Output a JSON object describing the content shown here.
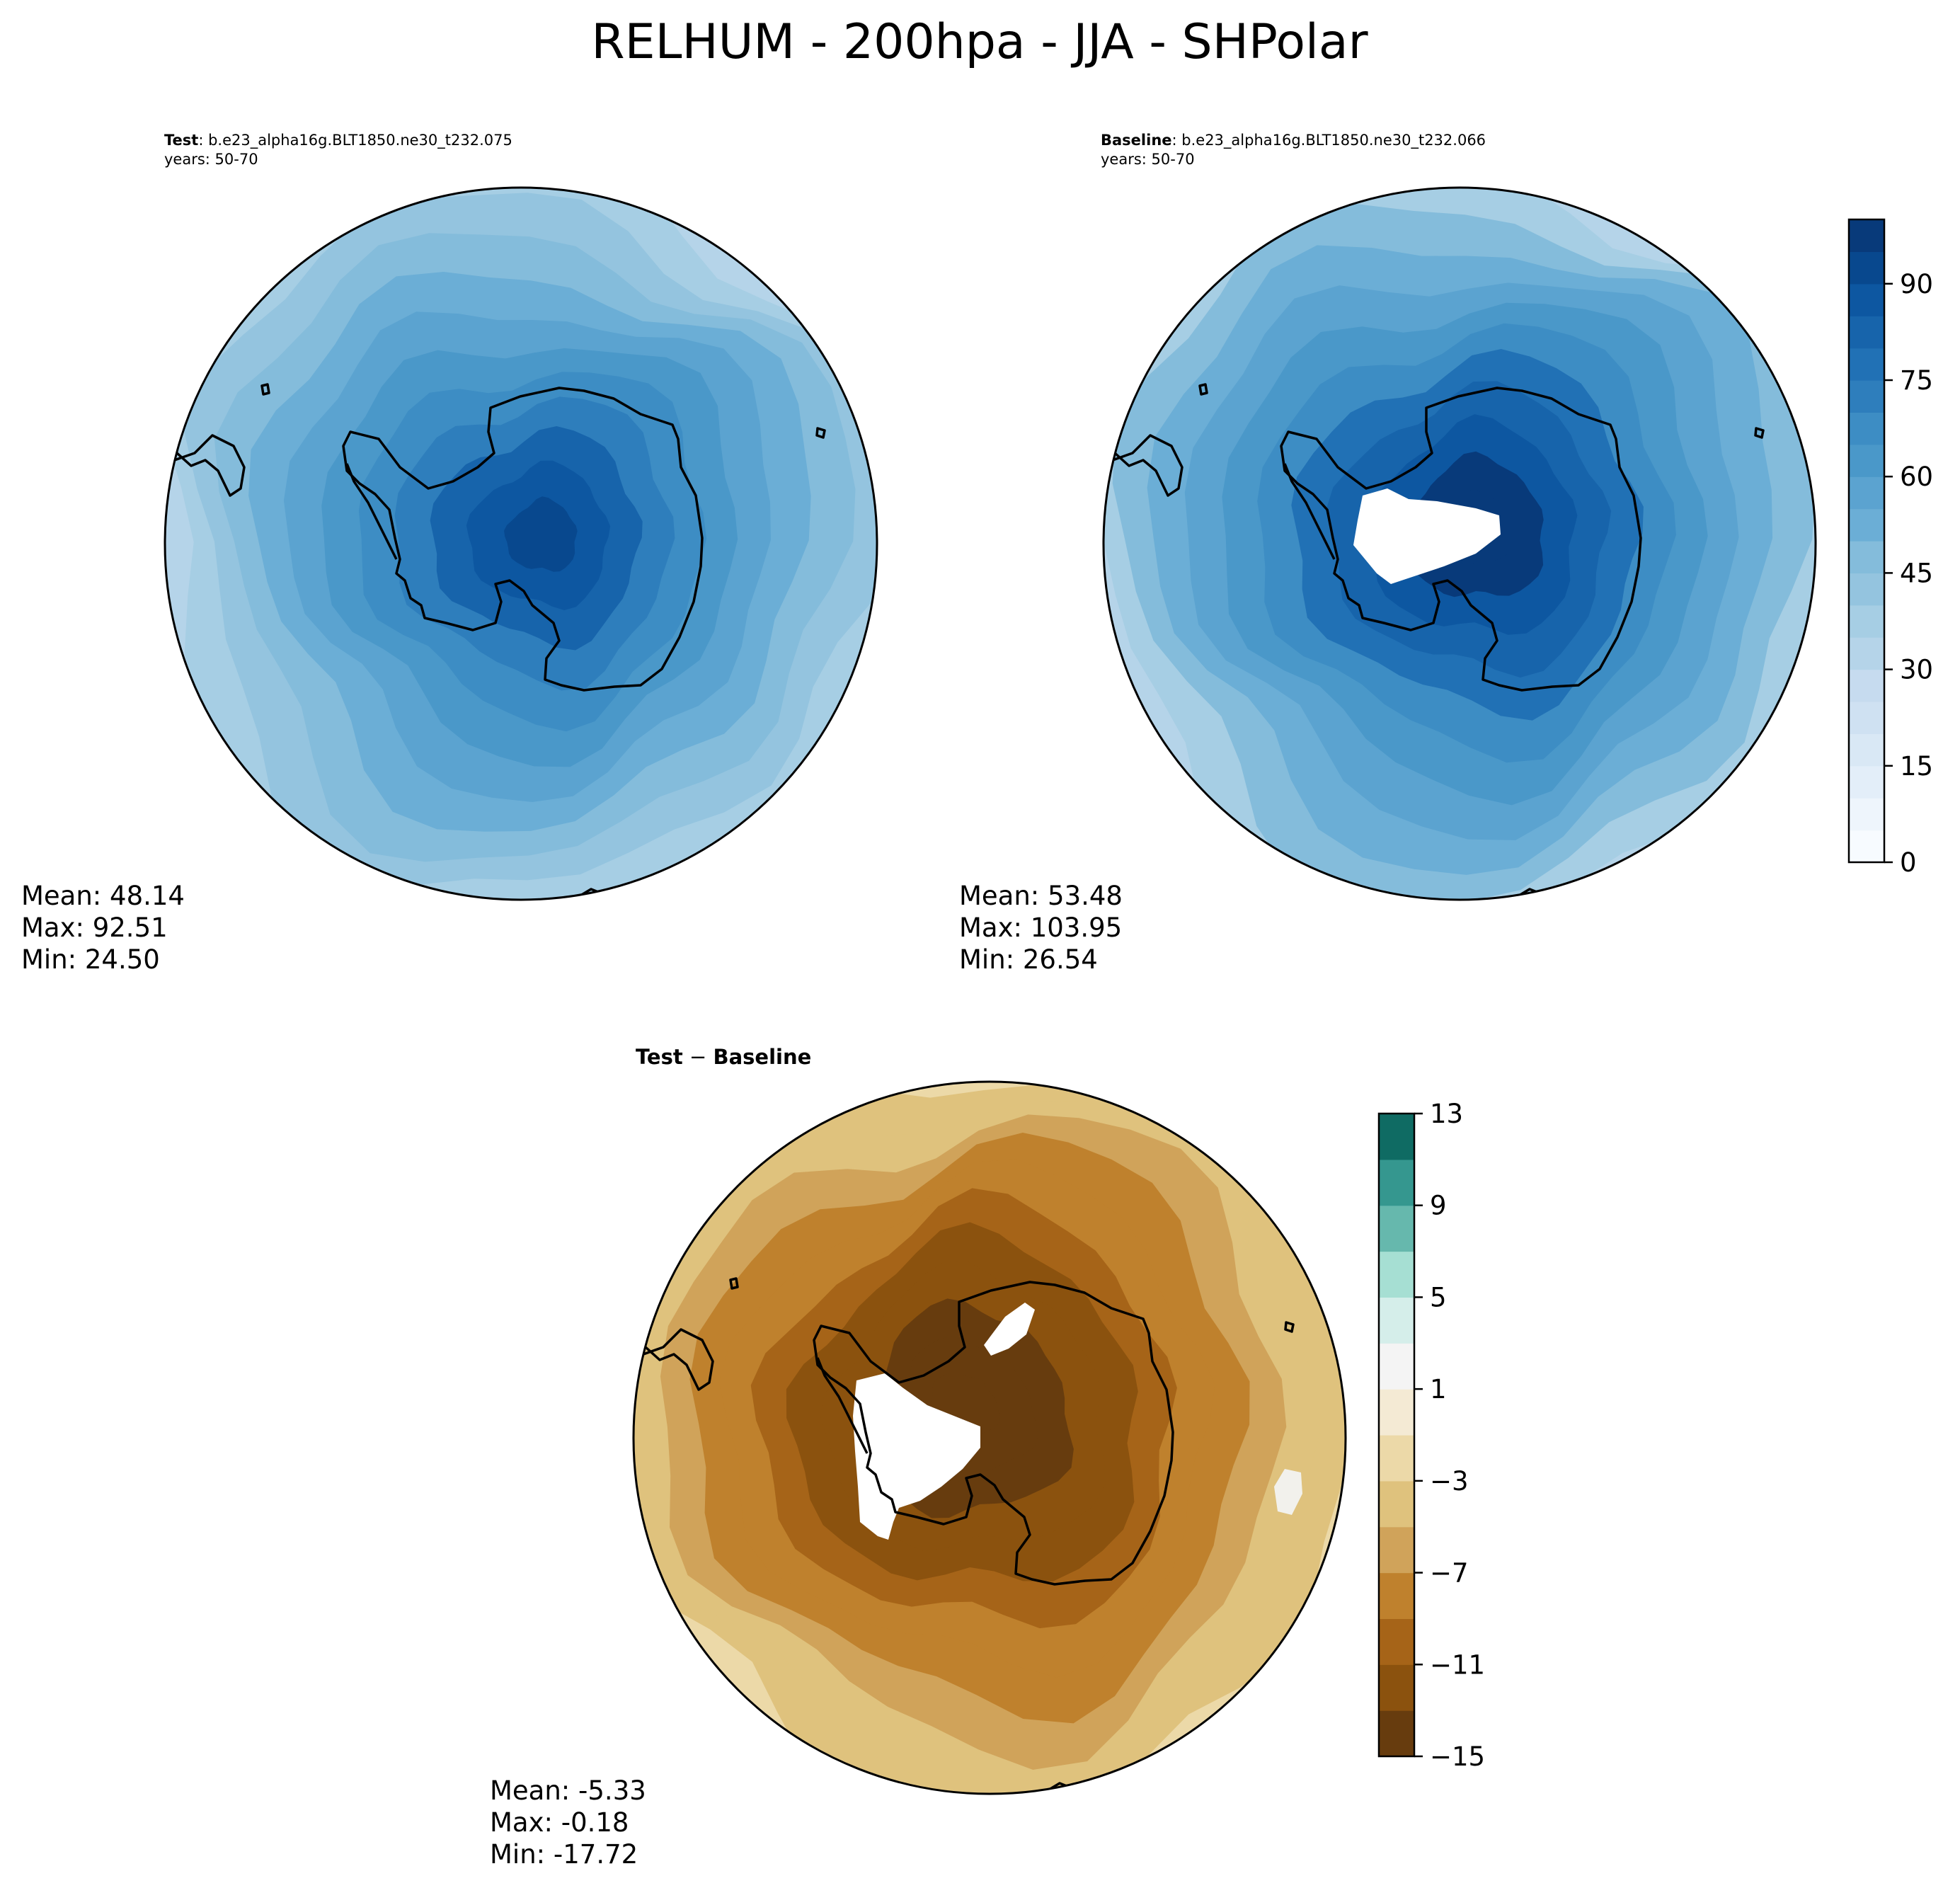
{
  "figure": {
    "title": "RELHUM - 200hpa - JJA - SHPolar"
  },
  "chart_data": [
    {
      "type": "polar-contour",
      "panel": "test",
      "title_bold": "Test",
      "title_rest": ": b.e23_alpha16g.BLT1850.ne30_t232.075",
      "years": "years: 50-70",
      "stats": {
        "mean": "Mean: 48.14",
        "max": "Max: 92.51",
        "min": "Min: 24.50"
      },
      "center_value": 92.51,
      "edge_value": 24.5
    },
    {
      "type": "polar-contour",
      "panel": "baseline",
      "title_bold": "Baseline",
      "title_rest": ": b.e23_alpha16g.BLT1850.ne30_t232.066",
      "years": "years: 50-70",
      "stats": {
        "mean": "Mean: 53.48",
        "max": "Max: 103.95",
        "min": "Min: 26.54"
      },
      "center_value": 103.95,
      "edge_value": 26.54,
      "colorbar": {
        "min": 0,
        "max": 100,
        "step": 5,
        "ticks": [
          0,
          15,
          30,
          45,
          60,
          75,
          90
        ],
        "tick_labels": [
          "0",
          "15",
          "30",
          "45",
          "60",
          "75",
          "90"
        ],
        "colors": [
          "#f7fbff",
          "#eef5fc",
          "#e3eef9",
          "#d9e8f5",
          "#cfe1f2",
          "#c6dbef",
          "#b5d4e9",
          "#a6cee4",
          "#94c4df",
          "#84bcdb",
          "#6baed6",
          "#5ba3d0",
          "#4a98c9",
          "#3d8dc4",
          "#2e7ebc",
          "#2171b5",
          "#1764ab",
          "#0d57a1",
          "#08488e",
          "#083a7a"
        ]
      }
    },
    {
      "type": "polar-contour",
      "panel": "difference",
      "title_bold": "Test",
      "title_sep": " − ",
      "title_bold2": "Baseline",
      "stats": {
        "mean": "Mean: -5.33",
        "max": "Max: -0.18",
        "min": "Min: -17.72"
      },
      "center_value": -17.72,
      "edge_value": -0.18,
      "colorbar": {
        "min": -15,
        "max": 13,
        "step": 2,
        "ticks": [
          -15,
          -11,
          -7,
          -3,
          1,
          5,
          9,
          13
        ],
        "tick_labels": [
          "−15",
          "−11",
          "−7",
          "−3",
          "1",
          "5",
          "9",
          "13"
        ],
        "colors": [
          "#673c0e",
          "#8b520e",
          "#a66418",
          "#bf812d",
          "#d0a35a",
          "#dfc27d",
          "#ecd9a8",
          "#f4ead4",
          "#f4f4f4",
          "#d5eeea",
          "#a6dfd3",
          "#66b8ad",
          "#35978f",
          "#0f6b63"
        ]
      }
    }
  ]
}
